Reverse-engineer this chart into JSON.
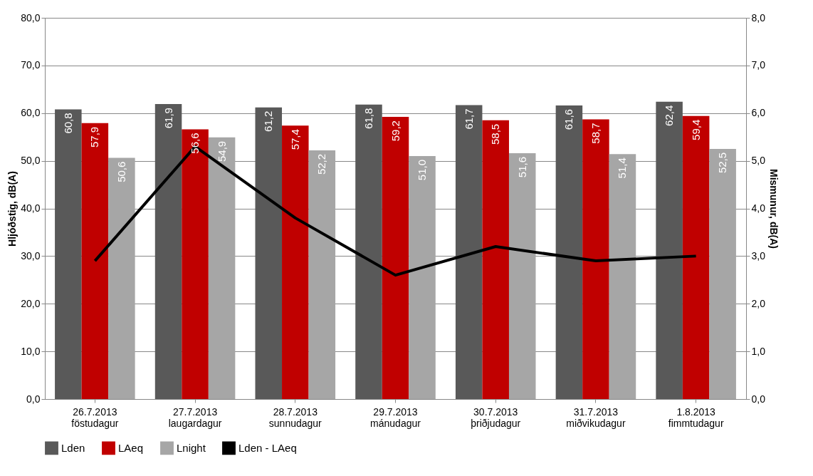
{
  "chart_data": {
    "type": "bar",
    "categories": [
      "26.7.2013\nföstudagur",
      "27.7.2013\nlaugardagur",
      "28.7.2013\nsunnudagur",
      "29.7.2013\nmánudagur",
      "30.7.2013\nþriðjudagur",
      "31.7.2013\nmiðvikudagur",
      "1.8.2013\nfimmtudagur"
    ],
    "ylabel": "Hljóðstig, dB(A)",
    "y2label": "Mismunur, dB(A)",
    "ylim": [
      0,
      80
    ],
    "yticks": [
      {
        "value": 0,
        "label": "0,0"
      },
      {
        "value": 10,
        "label": "10,0"
      },
      {
        "value": 20,
        "label": "20,0"
      },
      {
        "value": 30,
        "label": "30,0"
      },
      {
        "value": 40,
        "label": "40,0"
      },
      {
        "value": 50,
        "label": "50,0"
      },
      {
        "value": 60,
        "label": "60,0"
      },
      {
        "value": 70,
        "label": "70,0"
      },
      {
        "value": 80,
        "label": "80,0"
      }
    ],
    "y2lim": [
      0,
      8
    ],
    "y2ticks": [
      {
        "value": 0,
        "label": "0,0"
      },
      {
        "value": 1,
        "label": "1,0"
      },
      {
        "value": 2,
        "label": "2,0"
      },
      {
        "value": 3,
        "label": "3,0"
      },
      {
        "value": 4,
        "label": "4,0"
      },
      {
        "value": 5,
        "label": "5,0"
      },
      {
        "value": 6,
        "label": "6,0"
      },
      {
        "value": 7,
        "label": "7,0"
      },
      {
        "value": 8,
        "label": "8,0"
      }
    ],
    "grid": "y",
    "legend": "bottom",
    "series": [
      {
        "name": "Lden",
        "color": "#595959",
        "values": [
          60.8,
          61.9,
          61.2,
          61.8,
          61.7,
          61.6,
          62.4
        ],
        "value_labels": [
          "60,8",
          "61,9",
          "61,2",
          "61,8",
          "61,7",
          "61,6",
          "62,4"
        ]
      },
      {
        "name": "LAeq",
        "color": "#c00000",
        "values": [
          57.9,
          56.6,
          57.4,
          59.2,
          58.5,
          58.7,
          59.4
        ],
        "value_labels": [
          "57,9",
          "56,6",
          "57,4",
          "59,2",
          "58,5",
          "58,7",
          "59,4"
        ]
      },
      {
        "name": "Lnight",
        "color": "#a6a6a6",
        "values": [
          50.6,
          54.9,
          52.2,
          51.0,
          51.6,
          51.4,
          52.5
        ],
        "value_labels": [
          "50,6",
          "54,9",
          "52,2",
          "51,0",
          "51,6",
          "51,4",
          "52,5"
        ]
      },
      {
        "name": "Lden - LAeq",
        "color": "#000000",
        "type": "line",
        "axis": "y2",
        "line_style": "solid",
        "values": [
          2.9,
          5.3,
          3.8,
          2.6,
          3.2,
          2.9,
          3.0
        ]
      }
    ]
  }
}
